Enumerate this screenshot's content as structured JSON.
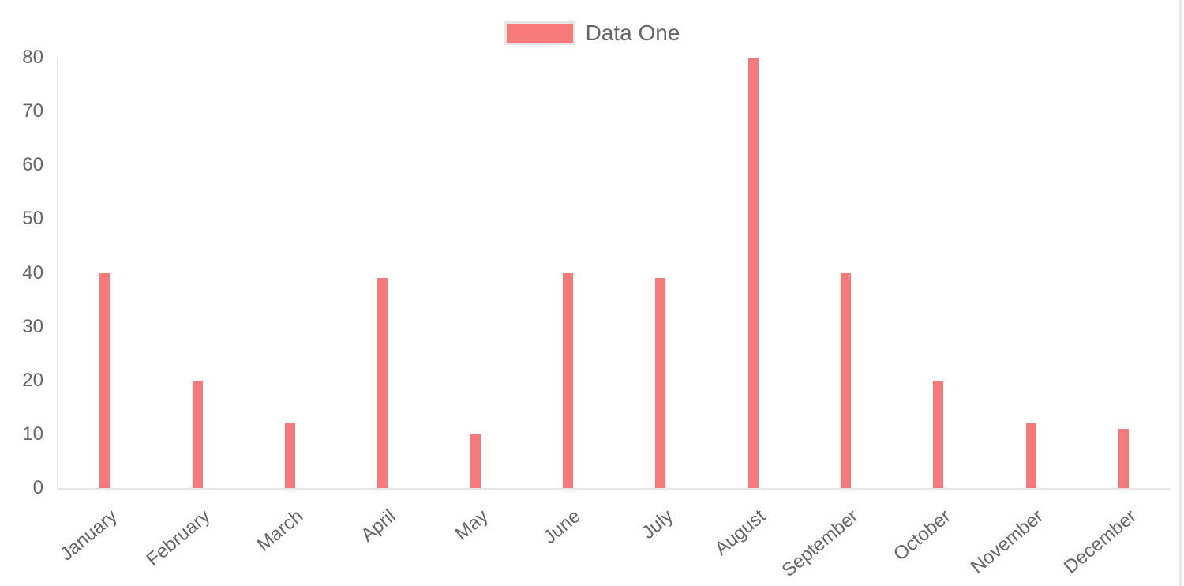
{
  "chart_data": {
    "type": "bar",
    "categories": [
      "January",
      "February",
      "March",
      "April",
      "May",
      "June",
      "July",
      "August",
      "September",
      "October",
      "November",
      "December"
    ],
    "series": [
      {
        "name": "Data One",
        "color": "#f87979",
        "values": [
          40,
          20,
          12,
          39,
          10,
          40,
          39,
          80,
          40,
          20,
          12,
          11
        ]
      }
    ],
    "xlabel": "",
    "ylabel": "",
    "ylim": [
      0,
      80
    ],
    "yticks": [
      0,
      10,
      20,
      30,
      40,
      50,
      60,
      70,
      80
    ],
    "grid": false,
    "legend_position": "top-center",
    "x_label_rotation_deg": -40,
    "colors": {
      "background": "#ffffff",
      "axis_line": "#e6e6e6",
      "tick_text": "#666666",
      "legend_text": "#666666",
      "legend_swatch_border": "#e6e6e6",
      "right_edge_line": "#e9e9e9"
    }
  }
}
